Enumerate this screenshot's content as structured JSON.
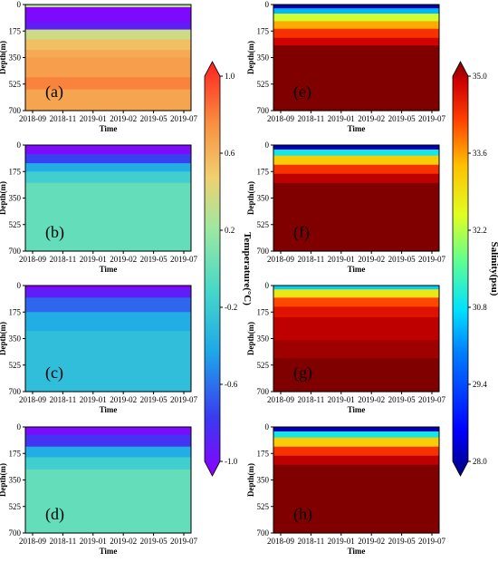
{
  "chart_data": {
    "type": "heatmap",
    "xlabel": "Time",
    "ylabel": "Depth(m)",
    "x_ticks": [
      "2018-09",
      "2018-11",
      "2019-01",
      "2019-02",
      "2019-05",
      "2019-07"
    ],
    "y_ticks": [
      "0",
      "175",
      "350",
      "525",
      "700"
    ],
    "ylim": [
      700,
      0
    ],
    "panels": [
      {
        "id": "a",
        "label": "(a)",
        "variable": "temperature",
        "layers": [
          {
            "depth": [
              0,
              18
            ],
            "value": 0.2
          },
          {
            "depth": [
              18,
              35
            ],
            "value": -1.0
          },
          {
            "depth": [
              35,
              120
            ],
            "value": -0.95
          },
          {
            "depth": [
              120,
              165
            ],
            "value": -0.85
          },
          {
            "depth": [
              165,
              230
            ],
            "value": 0.3
          },
          {
            "depth": [
              230,
              300
            ],
            "value": 0.5
          },
          {
            "depth": [
              300,
              350
            ],
            "value": 0.6
          },
          {
            "depth": [
              350,
              480
            ],
            "value": 0.65
          },
          {
            "depth": [
              480,
              560
            ],
            "value": 0.75
          },
          {
            "depth": [
              560,
              700
            ],
            "value": 0.62
          }
        ]
      },
      {
        "id": "b",
        "label": "(b)",
        "variable": "temperature",
        "layers": [
          {
            "depth": [
              0,
              60
            ],
            "value": -0.95
          },
          {
            "depth": [
              60,
              120
            ],
            "value": -0.7
          },
          {
            "depth": [
              120,
              175
            ],
            "value": -0.4
          },
          {
            "depth": [
              175,
              250
            ],
            "value": -0.2
          },
          {
            "depth": [
              250,
              700
            ],
            "value": -0.05
          }
        ]
      },
      {
        "id": "c",
        "label": "(c)",
        "variable": "temperature",
        "layers": [
          {
            "depth": [
              0,
              20
            ],
            "value": -1.0
          },
          {
            "depth": [
              20,
              80
            ],
            "value": -0.85
          },
          {
            "depth": [
              80,
              175
            ],
            "value": -0.6
          },
          {
            "depth": [
              175,
              300
            ],
            "value": -0.4
          },
          {
            "depth": [
              300,
              700
            ],
            "value": -0.3
          }
        ]
      },
      {
        "id": "d",
        "label": "(d)",
        "variable": "temperature",
        "layers": [
          {
            "depth": [
              0,
              50
            ],
            "value": -0.95
          },
          {
            "depth": [
              50,
              130
            ],
            "value": -0.75
          },
          {
            "depth": [
              130,
              200
            ],
            "value": -0.4
          },
          {
            "depth": [
              200,
              280
            ],
            "value": -0.2
          },
          {
            "depth": [
              280,
              700
            ],
            "value": -0.05
          }
        ]
      },
      {
        "id": "e",
        "label": "(e)",
        "variable": "salinity",
        "layers": [
          {
            "depth": [
              0,
              25
            ],
            "value": 28.2
          },
          {
            "depth": [
              25,
              60
            ],
            "value": 30.0
          },
          {
            "depth": [
              60,
              110
            ],
            "value": 31.8
          },
          {
            "depth": [
              110,
              160
            ],
            "value": 32.8
          },
          {
            "depth": [
              160,
              220
            ],
            "value": 33.6
          },
          {
            "depth": [
              220,
              270
            ],
            "value": 34.2
          },
          {
            "depth": [
              270,
              700
            ],
            "value": 35.0
          }
        ]
      },
      {
        "id": "f",
        "label": "(f)",
        "variable": "salinity",
        "layers": [
          {
            "depth": [
              0,
              30
            ],
            "value": 28.3
          },
          {
            "depth": [
              30,
              70
            ],
            "value": 30.5
          },
          {
            "depth": [
              70,
              130
            ],
            "value": 32.5
          },
          {
            "depth": [
              130,
              190
            ],
            "value": 33.6
          },
          {
            "depth": [
              190,
              250
            ],
            "value": 34.4
          },
          {
            "depth": [
              250,
              700
            ],
            "value": 35.0
          }
        ]
      },
      {
        "id": "g",
        "label": "(g)",
        "variable": "salinity",
        "layers": [
          {
            "depth": [
              0,
              25
            ],
            "value": 30.2
          },
          {
            "depth": [
              25,
              80
            ],
            "value": 32.2
          },
          {
            "depth": [
              80,
              140
            ],
            "value": 33.4
          },
          {
            "depth": [
              140,
              210
            ],
            "value": 34.0
          },
          {
            "depth": [
              210,
              360
            ],
            "value": 34.4
          },
          {
            "depth": [
              360,
              480
            ],
            "value": 34.7
          },
          {
            "depth": [
              480,
              700
            ],
            "value": 35.0
          }
        ]
      },
      {
        "id": "h",
        "label": "(h)",
        "variable": "salinity",
        "layers": [
          {
            "depth": [
              0,
              30
            ],
            "value": 28.3
          },
          {
            "depth": [
              30,
              70
            ],
            "value": 30.5
          },
          {
            "depth": [
              70,
              130
            ],
            "value": 32.5
          },
          {
            "depth": [
              130,
              190
            ],
            "value": 33.6
          },
          {
            "depth": [
              190,
              250
            ],
            "value": 34.4
          },
          {
            "depth": [
              250,
              700
            ],
            "value": 35.0
          }
        ]
      }
    ],
    "colorbars": [
      {
        "variable": "temperature",
        "title": "Temperature(°C)",
        "ticks": [
          "-1.0",
          "-0.6",
          "-0.2",
          "0.2",
          "0.6",
          "1.0"
        ],
        "range": [
          -1.0,
          1.0
        ],
        "colormap": [
          "#8a00ff",
          "#3a3af0",
          "#1ea8e8",
          "#48d8c8",
          "#9fe8a0",
          "#f0d070",
          "#f89040",
          "#ff2020"
        ]
      },
      {
        "variable": "salinity",
        "title": "Salinity(psu)",
        "ticks": [
          "28.0",
          "29.4",
          "30.8",
          "32.2",
          "33.6",
          "35.0"
        ],
        "range": [
          28.0,
          35.0
        ],
        "colormap": [
          "#000080",
          "#0000ff",
          "#0080ff",
          "#00e0ff",
          "#60ff90",
          "#e0ff20",
          "#ffc000",
          "#ff4000",
          "#d00000",
          "#800000"
        ]
      }
    ]
  }
}
